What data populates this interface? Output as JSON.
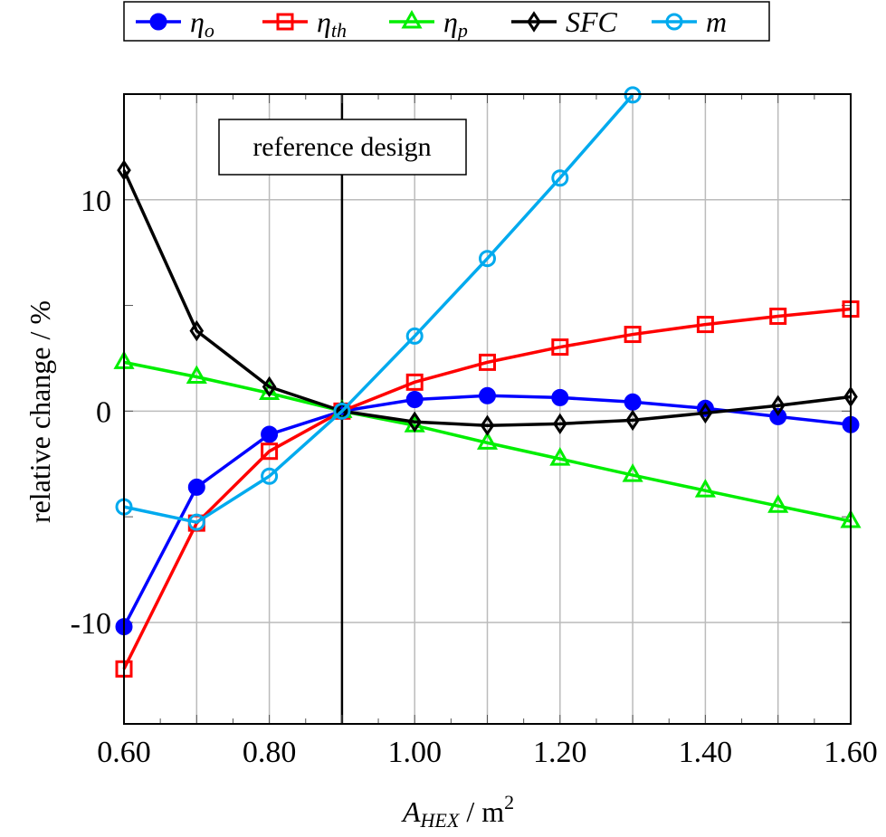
{
  "chart_data": {
    "type": "line",
    "xlabel_main": "A",
    "xlabel_sub": "HEX",
    "xlabel_unit": " / m",
    "xlabel_sup": "2",
    "ylabel": "relative change / %",
    "xlim": [
      0.6,
      1.6
    ],
    "ylim": [
      -14.8,
      15
    ],
    "grid": true,
    "x_ticks": [
      0.6,
      0.8,
      1.0,
      1.2,
      1.4,
      1.6
    ],
    "x_tick_labels": [
      "0.60",
      "0.80",
      "1.00",
      "1.20",
      "1.40",
      "1.60"
    ],
    "y_ticks": [
      -10,
      0,
      10
    ],
    "y_tick_labels": [
      "-10",
      "0",
      "10"
    ],
    "legend_placement": "top-center outside",
    "annotation": {
      "text": "reference design",
      "x": 0.9
    },
    "x": [
      0.6,
      0.7,
      0.8,
      0.9,
      1.0,
      1.1,
      1.2,
      1.3,
      1.4,
      1.5,
      1.6
    ],
    "series": [
      {
        "name": "η",
        "sub": "o",
        "color": "#0000ff",
        "marker": "filled-circle",
        "values": [
          -10.2,
          -3.6,
          -1.1,
          0,
          0.55,
          0.73,
          0.64,
          0.43,
          0.13,
          -0.26,
          -0.64
        ]
      },
      {
        "name": "η",
        "sub": "th",
        "color": "#ff0000",
        "marker": "open-square",
        "values": [
          -12.2,
          -5.3,
          -1.9,
          0,
          1.37,
          2.31,
          3.03,
          3.63,
          4.1,
          4.49,
          4.83
        ]
      },
      {
        "name": "η",
        "sub": "p",
        "color": "#00ee00",
        "marker": "open-triangle",
        "values": [
          2.31,
          1.62,
          0.85,
          0,
          -0.68,
          -1.5,
          -2.26,
          -3.03,
          -3.76,
          -4.49,
          -5.21
        ]
      },
      {
        "name": "SFC",
        "sub": "",
        "color": "#000000",
        "marker": "open-diamond",
        "values": [
          11.4,
          3.8,
          1.15,
          0,
          -0.51,
          -0.68,
          -0.6,
          -0.43,
          -0.09,
          0.26,
          0.68
        ]
      },
      {
        "name": "m",
        "sub": "",
        "color": "#00aaee",
        "marker": "open-circle",
        "values": [
          -4.53,
          -5.26,
          -3.08,
          0,
          3.55,
          7.22,
          11.03,
          14.96,
          null,
          null,
          null
        ]
      }
    ]
  }
}
